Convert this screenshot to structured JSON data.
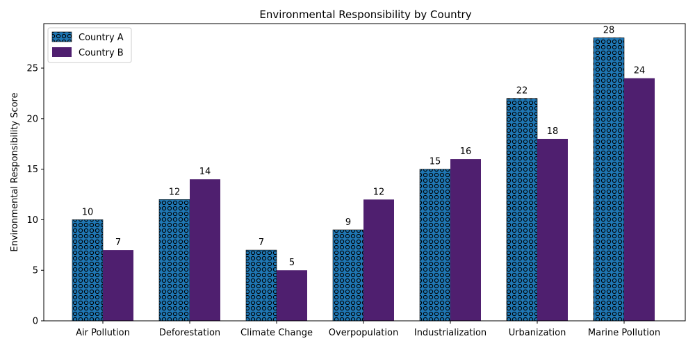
{
  "chart_data": {
    "type": "bar",
    "title": "Environmental Responsibility by Country",
    "xlabel": "",
    "ylabel": "Environmental Responsibility Score",
    "categories": [
      "Air Pollution",
      "Deforestation",
      "Climate Change",
      "Overpopulation",
      "Industrialization",
      "Urbanization",
      "Marine Pollution"
    ],
    "series": [
      {
        "name": "Country A",
        "values": [
          10,
          12,
          7,
          9,
          15,
          22,
          28
        ],
        "color": "#1f77b4",
        "hatch": "circles"
      },
      {
        "name": "Country B",
        "values": [
          7,
          14,
          5,
          12,
          16,
          18,
          24
        ],
        "color": "#4f1f6f"
      }
    ],
    "ylim": [
      0,
      29.4
    ],
    "yticks": [
      0,
      5,
      10,
      15,
      20,
      25
    ],
    "grid": false,
    "legend_position": "top-left"
  }
}
